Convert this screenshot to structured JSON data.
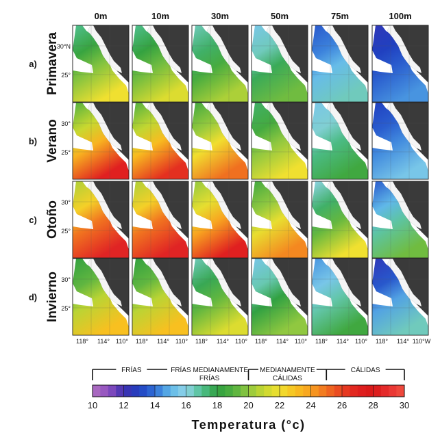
{
  "chart_data": {
    "type": "heatmap",
    "title": "",
    "depths": [
      "0m",
      "10m",
      "30m",
      "50m",
      "75m",
      "100m"
    ],
    "seasons": [
      {
        "letter": "a)",
        "name": "Primavera"
      },
      {
        "letter": "b)",
        "name": "Verano"
      },
      {
        "letter": "c)",
        "name": "Otoño"
      },
      {
        "letter": "d)",
        "name": "Invierno"
      }
    ],
    "lat_labels": [
      "30°N",
      "30°",
      "25°"
    ],
    "lon_labels": [
      "118°",
      "114°",
      "110°",
      "110°W"
    ],
    "approx_temperature_c": {
      "description": "approximate temperature at north and south of each map, by season x depth",
      "north": [
        [
          17,
          17,
          16.5,
          15.5,
          13.5,
          12.5
        ],
        [
          19,
          19,
          18.5,
          17.5,
          15.5,
          13
        ],
        [
          20.5,
          20.5,
          20,
          18.5,
          16,
          13.5
        ],
        [
          18,
          18,
          16.5,
          15.5,
          14.5,
          12.5
        ]
      ],
      "south": [
        [
          22,
          21.5,
          20.5,
          19.5,
          16.5,
          14.5
        ],
        [
          27,
          26.5,
          25,
          22,
          18.5,
          15.5
        ],
        [
          28.5,
          28.5,
          27,
          24.5,
          22,
          19.5
        ],
        [
          23,
          23,
          21.5,
          20,
          18.5,
          16.5
        ]
      ]
    },
    "colorbar": {
      "label": "Temperatura (°c)",
      "min": 10,
      "max": 30,
      "ticks": [
        "10",
        "12",
        "14",
        "16",
        "18",
        "20",
        "22",
        "24",
        "26",
        "28",
        "30"
      ],
      "stops": [
        {
          "t": 10,
          "color": "#b070c0"
        },
        {
          "t": 11,
          "color": "#9050c0"
        },
        {
          "t": 12,
          "color": "#4030b0"
        },
        {
          "t": 13,
          "color": "#2040c0"
        },
        {
          "t": 14,
          "color": "#3070d8"
        },
        {
          "t": 15,
          "color": "#60b8e8"
        },
        {
          "t": 16,
          "color": "#90d4e8"
        },
        {
          "t": 17,
          "color": "#50c090"
        },
        {
          "t": 18,
          "color": "#30a040"
        },
        {
          "t": 19,
          "color": "#50b040"
        },
        {
          "t": 20,
          "color": "#90c840"
        },
        {
          "t": 21,
          "color": "#c8d830"
        },
        {
          "t": 22,
          "color": "#f0e030"
        },
        {
          "t": 23,
          "color": "#f8c020"
        },
        {
          "t": 24,
          "color": "#f8a020"
        },
        {
          "t": 25,
          "color": "#f07020"
        },
        {
          "t": 26,
          "color": "#e84020"
        },
        {
          "t": 27,
          "color": "#e02020"
        },
        {
          "t": 28,
          "color": "#d81818"
        },
        {
          "t": 29,
          "color": "#e83030"
        },
        {
          "t": 30,
          "color": "#f05040"
        }
      ],
      "categories": [
        {
          "label": "FRÍAS",
          "from": 10,
          "to": 15
        },
        {
          "label": "FRÍAS MEDIANAMENTE FRÍAS",
          "from": 15,
          "to": 20
        },
        {
          "label": "MEDIANAMENTE CÁLIDAS",
          "from": 20,
          "to": 25
        },
        {
          "label": "CÁLIDAS",
          "from": 25,
          "to": 30
        }
      ]
    },
    "colors": {
      "land": "#3a3a3a",
      "outside": "#ffffff",
      "grid": "#555555"
    }
  }
}
